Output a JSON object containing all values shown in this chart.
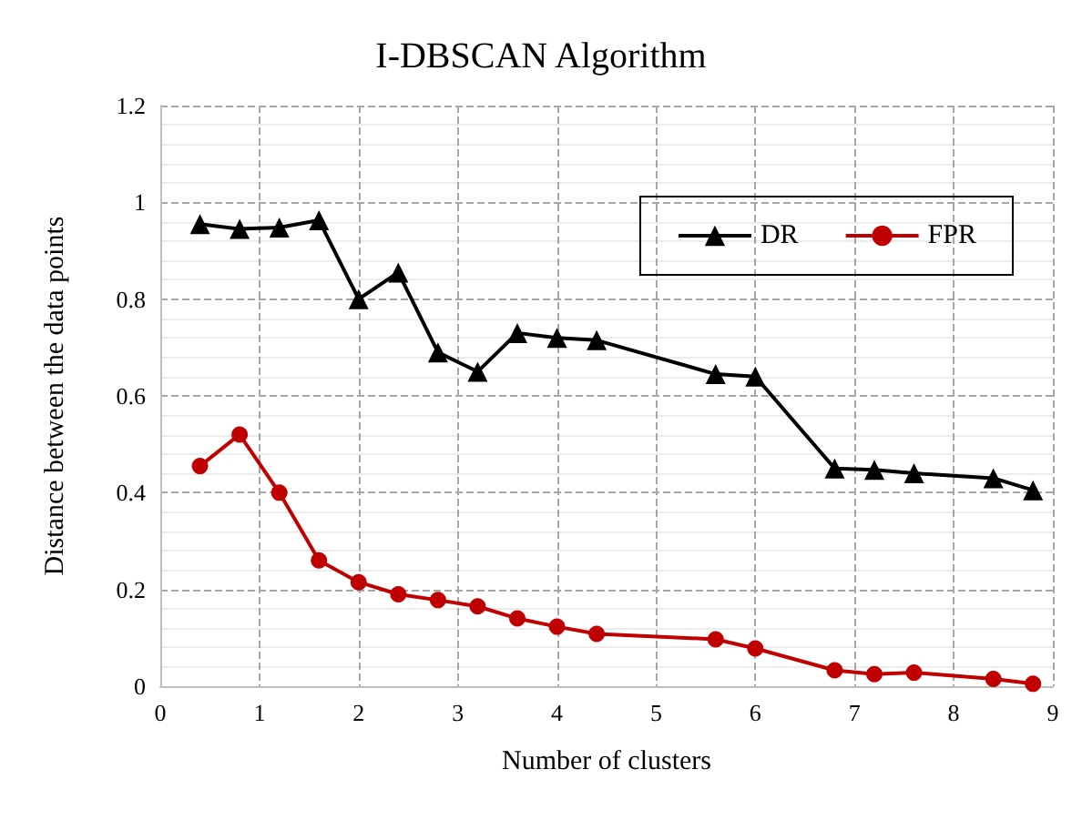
{
  "chart_data": {
    "type": "line",
    "title": "I-DBSCAN Algorithm",
    "xlabel": "Number of clusters",
    "ylabel": "Distance between the data points",
    "x": [
      0.4,
      0.8,
      1.2,
      1.6,
      2.0,
      2.4,
      2.8,
      3.2,
      3.6,
      4.0,
      4.4,
      5.6,
      6.0,
      6.8,
      7.2,
      7.6,
      8.4,
      8.8
    ],
    "series": [
      {
        "name": "DR",
        "color": "#000000",
        "marker": "triangle",
        "values": [
          0.955,
          0.945,
          0.948,
          0.963,
          0.8,
          0.855,
          0.69,
          0.65,
          0.73,
          0.72,
          0.715,
          0.645,
          0.64,
          0.45,
          0.447,
          0.44,
          0.43,
          0.405
        ]
      },
      {
        "name": "FPR",
        "color": "#c00000",
        "marker": "circle",
        "values": [
          0.455,
          0.52,
          0.4,
          0.26,
          0.215,
          0.19,
          0.178,
          0.165,
          0.14,
          0.123,
          0.108,
          0.097,
          0.078,
          0.033,
          0.025,
          0.028,
          0.015,
          0.005
        ]
      }
    ],
    "xlim": [
      0,
      9
    ],
    "xticks": [
      0,
      1,
      2,
      3,
      4,
      5,
      6,
      7,
      8,
      9
    ],
    "ylim": [
      0,
      1.2
    ],
    "yticks": [
      0,
      0.2,
      0.4,
      0.6,
      0.8,
      1,
      1.2
    ],
    "grid": true,
    "legend": "top right",
    "line_style": "solid"
  }
}
